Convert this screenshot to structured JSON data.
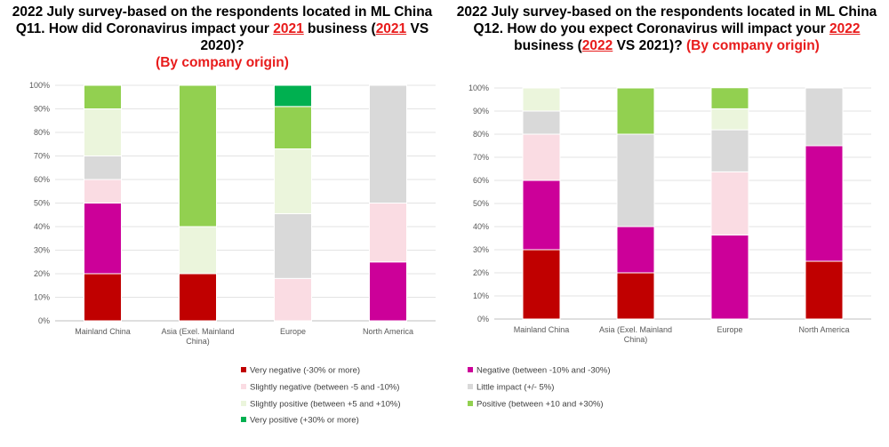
{
  "titles": {
    "left": {
      "line1": "2022 July survey-based on the respondents located in ML China",
      "line2_a": "Q11. How did Coronavirus impact your ",
      "line2_year": "2021",
      "line2_b": " business (",
      "line2_year2": "2021",
      "line2_c": " VS 2020)?",
      "line3": "(By company origin)"
    },
    "right": {
      "line1": "2022 July survey-based on the respondents located in ML China",
      "line2_a": "Q12. How do you expect Coronavirus will impact your ",
      "line2_year": "2022",
      "line3_a": "business (",
      "line3_year": "2022",
      "line3_b": " VS 2021)?  ",
      "line3_c": "(By company origin)"
    }
  },
  "legend": [
    {
      "label": "Very negative (-30% or more)",
      "color": "#c00000"
    },
    {
      "label": "Negative (between -10% and -30%)",
      "color": "#cc0099"
    },
    {
      "label": "Slightly negative (between -5 and -10%)",
      "color": "#fadce3"
    },
    {
      "label": "Little impact (+/- 5%)",
      "color": "#d9d9d9"
    },
    {
      "label": "Slightly positive (between +5 and +10%)",
      "color": "#ebf5dc"
    },
    {
      "label": "Positive (between +10 and +30%)",
      "color": "#92d050"
    },
    {
      "label": "Very positive (+30% or more)",
      "color": "#00b050"
    }
  ],
  "chart_data": [
    {
      "type": "bar",
      "stacked": true,
      "ylim": [
        0,
        100
      ],
      "yticks": [
        "0%",
        "10%",
        "20%",
        "30%",
        "40%",
        "50%",
        "60%",
        "70%",
        "80%",
        "90%",
        "100%"
      ],
      "categories": [
        "Mainland China",
        "Asia (Exel. Mainland China)",
        "Europe",
        "North America"
      ],
      "category_labels": [
        [
          "Mainland China"
        ],
        [
          "Asia (Exel. Mainland",
          "China)"
        ],
        [
          "Europe"
        ],
        [
          "North America"
        ]
      ],
      "grid": true,
      "series": [
        {
          "name": "Very negative (-30% or more)",
          "color": "#c00000",
          "values": [
            20,
            20,
            0,
            0
          ]
        },
        {
          "name": "Negative (between -10% and -30%)",
          "color": "#cc0099",
          "values": [
            30,
            0,
            0,
            25
          ]
        },
        {
          "name": "Slightly negative (between -5 and -10%)",
          "color": "#fadce3",
          "values": [
            10,
            0,
            18,
            25
          ]
        },
        {
          "name": "Little impact (+/- 5%)",
          "color": "#d9d9d9",
          "values": [
            10,
            0,
            27.5,
            50
          ]
        },
        {
          "name": "Slightly positive (between +5 and +10%)",
          "color": "#ebf5dc",
          "values": [
            20,
            20,
            27.5,
            0
          ]
        },
        {
          "name": "Positive (between +10 and +30%)",
          "color": "#92d050",
          "values": [
            10,
            60,
            18,
            0
          ]
        },
        {
          "name": "Very positive (+30% or more)",
          "color": "#00b050",
          "values": [
            0,
            0,
            9,
            0
          ]
        }
      ]
    },
    {
      "type": "bar",
      "stacked": true,
      "ylim": [
        0,
        100
      ],
      "yticks": [
        "0%",
        "10%",
        "20%",
        "30%",
        "40%",
        "50%",
        "60%",
        "70%",
        "80%",
        "90%",
        "100%"
      ],
      "categories": [
        "Mainland China",
        "Asia (Exel. Mainland China)",
        "Europe",
        "North America"
      ],
      "category_labels": [
        [
          "Mainland China"
        ],
        [
          "Asia (Exel. Mainland",
          "China)"
        ],
        [
          "Europe"
        ],
        [
          "North America"
        ]
      ],
      "grid": true,
      "series": [
        {
          "name": "Very negative (-30% or more)",
          "color": "#c00000",
          "values": [
            30,
            20,
            0,
            25
          ]
        },
        {
          "name": "Negative (between -10% and -30%)",
          "color": "#cc0099",
          "values": [
            30,
            20,
            36.4,
            50
          ]
        },
        {
          "name": "Slightly negative (between -5 and -10%)",
          "color": "#fadce3",
          "values": [
            20,
            0,
            27.3,
            0
          ]
        },
        {
          "name": "Little impact (+/- 5%)",
          "color": "#d9d9d9",
          "values": [
            10,
            40,
            18.2,
            25
          ]
        },
        {
          "name": "Slightly positive (between +5 and +10%)",
          "color": "#ebf5dc",
          "values": [
            10,
            0,
            9.1,
            0
          ]
        },
        {
          "name": "Positive (between +10 and +30%)",
          "color": "#92d050",
          "values": [
            0,
            20,
            9.1,
            0
          ]
        },
        {
          "name": "Very positive (+30% or more)",
          "color": "#00b050",
          "values": [
            0,
            0,
            0,
            0
          ]
        }
      ]
    }
  ]
}
